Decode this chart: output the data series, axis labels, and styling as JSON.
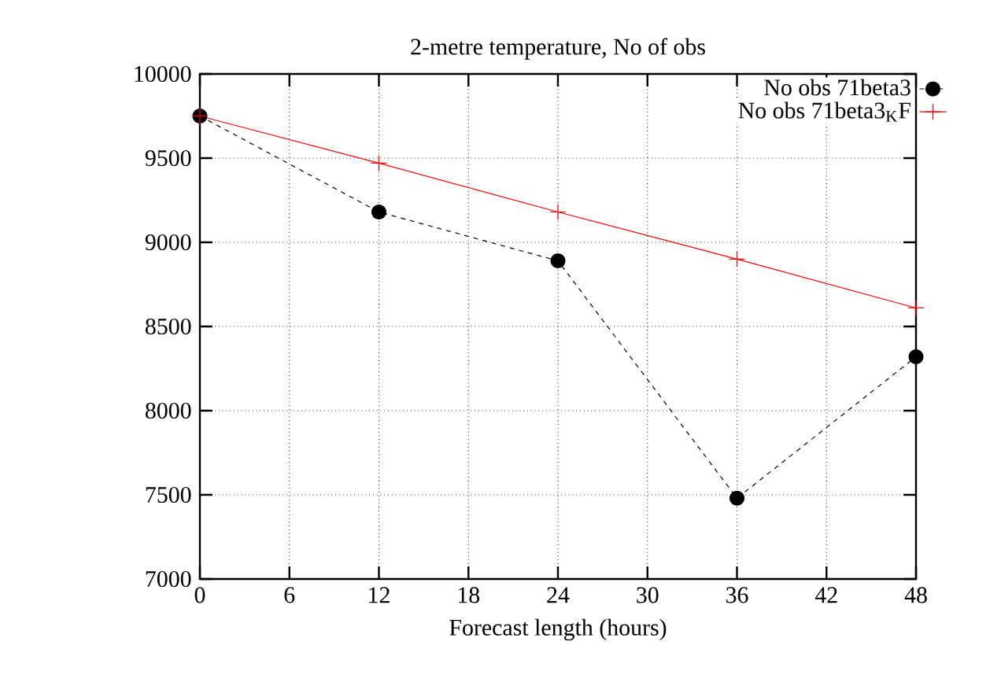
{
  "chart_data": {
    "type": "line",
    "title": "2-metre temperature, No of obs",
    "xlabel": "Forecast length (hours)",
    "x": [
      0,
      12,
      24,
      36,
      48
    ],
    "series": [
      {
        "name": "No obs  71beta3",
        "color": "#000000",
        "values": [
          9750,
          9180,
          8890,
          7480,
          8320
        ],
        "marker": "circle",
        "line_style": "dashed"
      },
      {
        "name": "No obs  71beta3$_{K}$F",
        "color": "#ff0000",
        "values": [
          9750,
          9470,
          9180,
          8900,
          8610
        ],
        "marker": "cross",
        "line_style": "solid"
      }
    ],
    "xlim": [
      0,
      48
    ],
    "xticks": [
      0,
      6,
      12,
      18,
      24,
      30,
      36,
      42,
      48
    ],
    "ylim": [
      7000,
      10000
    ],
    "yticks": [
      7000,
      7500,
      8000,
      8500,
      9000,
      9500,
      10000
    ],
    "grid": true,
    "legend": "top right"
  }
}
